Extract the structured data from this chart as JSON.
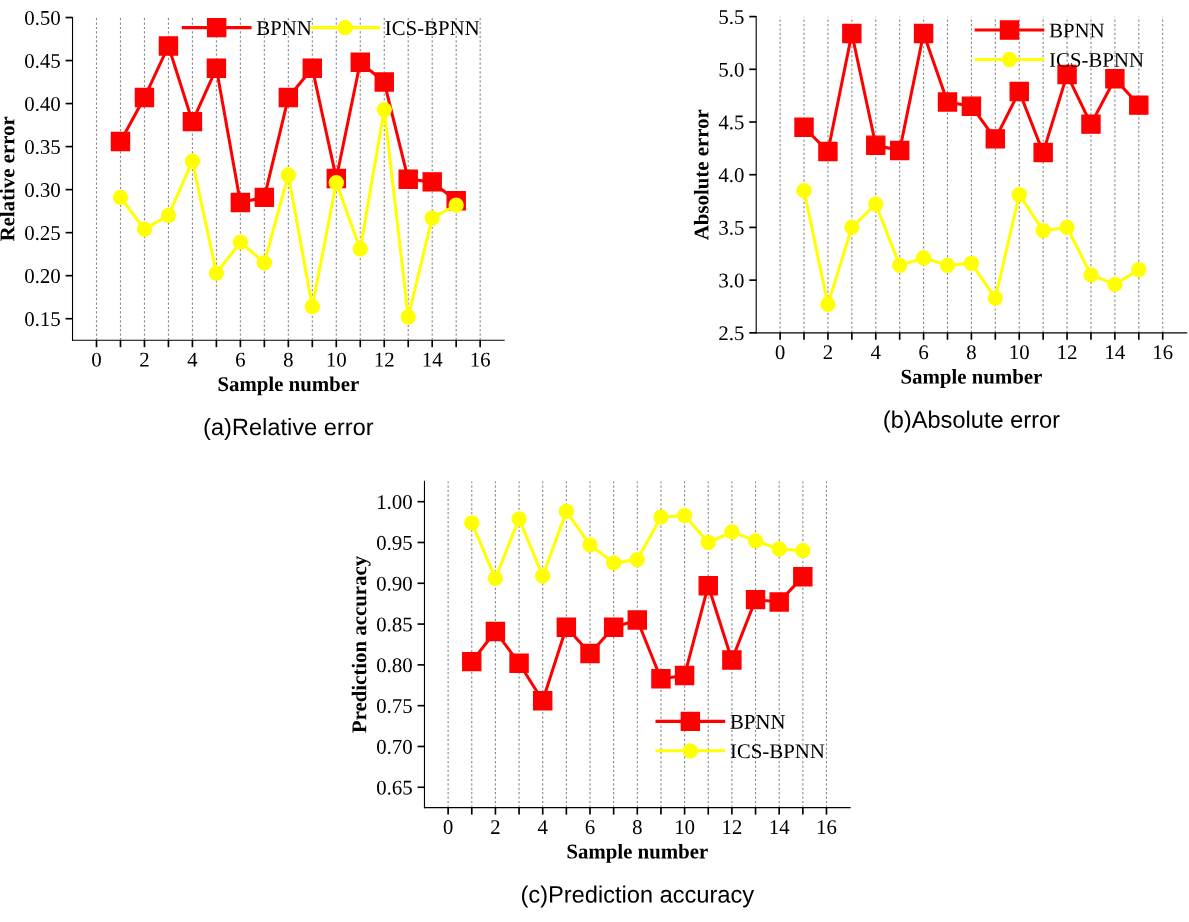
{
  "chart_data": [
    {
      "type": "line",
      "title": "(a)Relative error",
      "xlabel": "Sample number",
      "ylabel": "Relative error",
      "x": [
        1,
        2,
        3,
        4,
        5,
        6,
        7,
        8,
        9,
        10,
        11,
        12,
        13,
        14,
        15
      ],
      "series": [
        {
          "name": "BPNN",
          "color": "#ff0000",
          "marker": "square",
          "values": [
            0.356,
            0.407,
            0.467,
            0.379,
            0.441,
            0.285,
            0.291,
            0.407,
            0.441,
            0.313,
            0.448,
            0.425,
            0.312,
            0.309,
            0.287
          ]
        },
        {
          "name": "ICS-BPNN",
          "color": "#ffff00",
          "marker": "circle",
          "values": [
            0.291,
            0.254,
            0.27,
            0.333,
            0.203,
            0.239,
            0.215,
            0.317,
            0.164,
            0.308,
            0.231,
            0.393,
            0.152,
            0.267,
            0.282
          ]
        }
      ],
      "xlim": [
        -1,
        17
      ],
      "xticks": [
        0,
        {
          "value": 1,
          "label": null
        },
        2,
        {
          "value": 3,
          "label": null
        },
        4,
        {
          "value": 5,
          "label": null
        },
        6,
        {
          "value": 7,
          "label": null
        },
        8,
        {
          "value": 9,
          "label": null
        },
        10,
        {
          "value": 11,
          "label": null
        },
        12,
        {
          "value": 13,
          "label": null
        },
        14,
        {
          "value": 15,
          "label": null
        },
        16
      ],
      "ylim": [
        0.125,
        0.5
      ],
      "yticks": [
        {
          "value": 0.15,
          "label": "0.15"
        },
        {
          "value": 0.2,
          "label": "0.20"
        },
        {
          "value": 0.25,
          "label": "0.25"
        },
        {
          "value": 0.3,
          "label": "0.30"
        },
        {
          "value": 0.35,
          "label": "0.35"
        },
        {
          "value": 0.4,
          "label": "0.40"
        },
        {
          "value": 0.45,
          "label": "0.45"
        },
        {
          "value": 0.5,
          "label": "0.50"
        }
      ],
      "grid": "x",
      "legend": "top",
      "line_style": "solid"
    },
    {
      "type": "line",
      "title": "(b)Absolute error",
      "xlabel": "Sample number",
      "ylabel": "Absolute error",
      "x": [
        1,
        2,
        3,
        4,
        5,
        6,
        7,
        8,
        9,
        10,
        11,
        12,
        13,
        14,
        15
      ],
      "series": [
        {
          "name": "BPNN",
          "color": "#ff0000",
          "marker": "square",
          "values": [
            4.45,
            4.22,
            5.34,
            4.28,
            4.23,
            5.34,
            4.69,
            4.65,
            4.34,
            4.79,
            4.21,
            4.95,
            4.48,
            4.91,
            4.66
          ]
        },
        {
          "name": "ICS-BPNN",
          "color": "#ffff00",
          "marker": "circle",
          "values": [
            3.85,
            2.77,
            3.5,
            3.72,
            3.14,
            3.21,
            3.14,
            3.16,
            2.83,
            3.81,
            3.47,
            3.5,
            3.05,
            2.96,
            3.1
          ]
        }
      ],
      "xlim": [
        -1,
        17
      ],
      "xticks": [
        0,
        {
          "value": 1,
          "label": null
        },
        2,
        {
          "value": 3,
          "label": null
        },
        4,
        {
          "value": 5,
          "label": null
        },
        6,
        {
          "value": 7,
          "label": null
        },
        8,
        {
          "value": 9,
          "label": null
        },
        10,
        {
          "value": 11,
          "label": null
        },
        12,
        {
          "value": 13,
          "label": null
        },
        14,
        {
          "value": 15,
          "label": null
        },
        16
      ],
      "ylim": [
        2.5,
        5.5
      ],
      "yticks": [
        {
          "value": 2.5,
          "label": "2.5"
        },
        {
          "value": 3.0,
          "label": "3.0"
        },
        {
          "value": 3.5,
          "label": "3.5"
        },
        {
          "value": 4.0,
          "label": "4.0"
        },
        {
          "value": 4.5,
          "label": "4.5"
        },
        {
          "value": 5.0,
          "label": "5.0"
        },
        {
          "value": 5.5,
          "label": "5.5"
        }
      ],
      "grid": "x",
      "legend": "top right",
      "line_style": "solid"
    },
    {
      "type": "line",
      "title": "(c)Prediction accuracy",
      "xlabel": "Sample number",
      "ylabel": "Prediction accuracy",
      "x": [
        1,
        2,
        3,
        4,
        5,
        6,
        7,
        8,
        9,
        10,
        11,
        12,
        13,
        14,
        15
      ],
      "series": [
        {
          "name": "BPNN",
          "color": "#ff0000",
          "marker": "square",
          "values": [
            0.804,
            0.841,
            0.802,
            0.756,
            0.846,
            0.814,
            0.846,
            0.855,
            0.783,
            0.787,
            0.897,
            0.806,
            0.88,
            0.877,
            0.908
          ]
        },
        {
          "name": "ICS-BPNN",
          "color": "#ffff00",
          "marker": "circle",
          "values": [
            0.974,
            0.906,
            0.979,
            0.909,
            0.988,
            0.947,
            0.925,
            0.929,
            0.981,
            0.983,
            0.95,
            0.963,
            0.952,
            0.942,
            0.94
          ]
        }
      ],
      "xlim": [
        -1,
        17
      ],
      "xticks": [
        0,
        {
          "value": 1,
          "label": null
        },
        2,
        {
          "value": 3,
          "label": null
        },
        4,
        {
          "value": 5,
          "label": null
        },
        6,
        {
          "value": 7,
          "label": null
        },
        8,
        {
          "value": 9,
          "label": null
        },
        10,
        {
          "value": 11,
          "label": null
        },
        12,
        {
          "value": 13,
          "label": null
        },
        14,
        {
          "value": 15,
          "label": null
        },
        16
      ],
      "ylim": [
        0.625,
        1.025
      ],
      "yticks": [
        {
          "value": 0.65,
          "label": "0.65"
        },
        {
          "value": 0.7,
          "label": "0.70"
        },
        {
          "value": 0.75,
          "label": "0.75"
        },
        {
          "value": 0.8,
          "label": "0.80"
        },
        {
          "value": 0.85,
          "label": "0.85"
        },
        {
          "value": 0.9,
          "label": "0.90"
        },
        {
          "value": 0.95,
          "label": "0.95"
        },
        {
          "value": 1.0,
          "label": "1.00"
        }
      ],
      "grid": "x",
      "legend": "bottom right",
      "line_style": "solid"
    }
  ]
}
